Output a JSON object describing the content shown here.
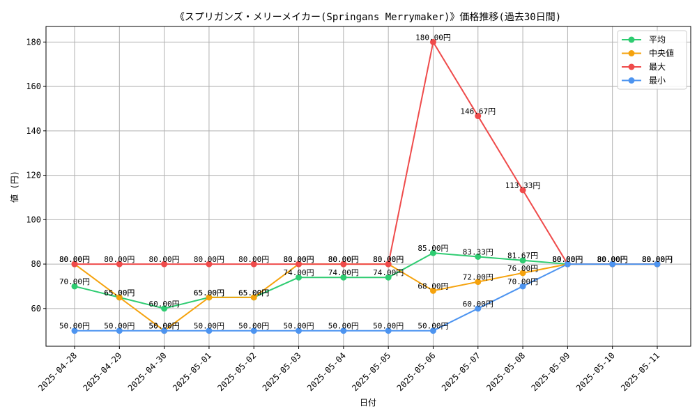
{
  "chart_data": {
    "type": "line",
    "title": "《スプリガンズ・メリーメイカー(Springans Merrymaker)》価格推移(過去30日間)",
    "xlabel": "日付",
    "ylabel": "値 (円)",
    "ylim": [
      43,
      187
    ],
    "yticks": [
      60,
      80,
      100,
      120,
      140,
      160,
      180
    ],
    "grid": true,
    "legend_position": "top-right",
    "label_suffix": "円",
    "categories": [
      "2025-04-28",
      "2025-04-29",
      "2025-04-30",
      "2025-05-01",
      "2025-05-02",
      "2025-05-03",
      "2025-05-04",
      "2025-05-05",
      "2025-05-06",
      "2025-05-07",
      "2025-05-08",
      "2025-05-09",
      "2025-05-10",
      "2025-05-11"
    ],
    "series": [
      {
        "name": "平均",
        "color": "#2ecc71",
        "values": [
          70.0,
          65.0,
          60.0,
          65.0,
          65.0,
          74.0,
          74.0,
          74.0,
          85.0,
          83.33,
          81.67,
          80.0,
          80.0,
          80.0
        ]
      },
      {
        "name": "中央値",
        "color": "#f5a20c",
        "values": [
          80.0,
          65.0,
          50.0,
          65.0,
          65.0,
          80.0,
          80.0,
          80.0,
          68.0,
          72.0,
          76.0,
          80.0,
          80.0,
          80.0
        ]
      },
      {
        "name": "最大",
        "color": "#ef4b4b",
        "values": [
          80.0,
          80.0,
          80.0,
          80.0,
          80.0,
          80.0,
          80.0,
          80.0,
          180.0,
          146.67,
          113.33,
          80.0,
          80.0,
          80.0
        ]
      },
      {
        "name": "最小",
        "color": "#4d94f0",
        "values": [
          50.0,
          50.0,
          50.0,
          50.0,
          50.0,
          50.0,
          50.0,
          50.0,
          50.0,
          60.0,
          70.0,
          80.0,
          80.0,
          80.0
        ]
      }
    ]
  }
}
